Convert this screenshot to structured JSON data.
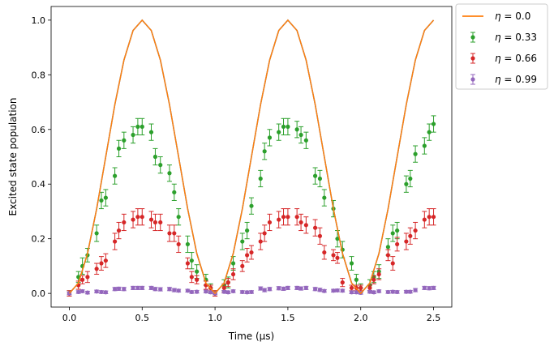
{
  "chart_data": {
    "type": "scatter",
    "xlabel": "Time (μs)",
    "ylabel": "Excited state population",
    "xlim": [
      -0.125,
      2.625
    ],
    "ylim": [
      -0.05,
      1.05
    ],
    "xticks": [
      0.0,
      0.5,
      1.0,
      1.5,
      2.0,
      2.5
    ],
    "xtick_labels": [
      "0.0",
      "0.5",
      "1.0",
      "1.5",
      "2.0",
      "2.5"
    ],
    "yticks": [
      0.0,
      0.2,
      0.4,
      0.6,
      0.8,
      1.0
    ],
    "ytick_labels": [
      "0.0",
      "0.2",
      "0.4",
      "0.6",
      "0.8",
      "1.0"
    ],
    "legend_position": "outside-top-right",
    "series": [
      {
        "name": "η = 0.0",
        "label_symbol": "η",
        "label_value": " = 0.0",
        "kind": "line",
        "color": "#ff7f0e",
        "x": [
          0.0,
          0.0625,
          0.125,
          0.1875,
          0.25,
          0.3125,
          0.375,
          0.4375,
          0.5,
          0.5625,
          0.625,
          0.6875,
          0.75,
          0.8125,
          0.875,
          0.9375,
          1.0,
          1.0625,
          1.125,
          1.1875,
          1.25,
          1.3125,
          1.375,
          1.4375,
          1.5,
          1.5625,
          1.625,
          1.6875,
          1.75,
          1.8125,
          1.875,
          1.9375,
          2.0,
          2.0625,
          2.125,
          2.1875,
          2.25,
          2.3125,
          2.375,
          2.4375,
          2.5
        ],
        "y": [
          0.0,
          0.038,
          0.146,
          0.309,
          0.5,
          0.691,
          0.854,
          0.962,
          1.0,
          0.962,
          0.854,
          0.691,
          0.5,
          0.309,
          0.146,
          0.038,
          0.0,
          0.038,
          0.146,
          0.309,
          0.5,
          0.691,
          0.854,
          0.962,
          1.0,
          0.962,
          0.854,
          0.691,
          0.5,
          0.309,
          0.146,
          0.038,
          0.0,
          0.038,
          0.146,
          0.309,
          0.5,
          0.691,
          0.854,
          0.962,
          1.0
        ]
      },
      {
        "name": "η = 0.33",
        "label_symbol": "η",
        "label_value": " = 0.33",
        "kind": "errorbar",
        "color": "#2ca02c",
        "x": [
          0.0,
          0.0625,
          0.09,
          0.125,
          0.1875,
          0.22,
          0.25,
          0.3125,
          0.34,
          0.375,
          0.4375,
          0.47,
          0.5,
          0.5625,
          0.59,
          0.625,
          0.6875,
          0.72,
          0.75,
          0.8125,
          0.84,
          0.875,
          0.9375,
          0.97,
          1.0,
          1.0625,
          1.09,
          1.125,
          1.1875,
          1.22,
          1.25,
          1.3125,
          1.34,
          1.375,
          1.4375,
          1.47,
          1.5,
          1.5625,
          1.59,
          1.625,
          1.6875,
          1.72,
          1.75,
          1.8125,
          1.84,
          1.875,
          1.9375,
          1.97,
          2.0,
          2.0625,
          2.09,
          2.125,
          2.1875,
          2.22,
          2.25,
          2.3125,
          2.34,
          2.375,
          2.4375,
          2.47,
          2.5
        ],
        "y": [
          0.0,
          0.06,
          0.1,
          0.14,
          0.22,
          0.34,
          0.35,
          0.43,
          0.53,
          0.56,
          0.58,
          0.61,
          0.61,
          0.59,
          0.5,
          0.47,
          0.44,
          0.37,
          0.28,
          0.18,
          0.12,
          0.08,
          0.05,
          0.02,
          0.0,
          0.03,
          0.04,
          0.11,
          0.19,
          0.23,
          0.32,
          0.42,
          0.52,
          0.57,
          0.59,
          0.61,
          0.61,
          0.6,
          0.58,
          0.56,
          0.43,
          0.42,
          0.35,
          0.31,
          0.2,
          0.16,
          0.11,
          0.05,
          0.02,
          0.03,
          0.06,
          0.08,
          0.17,
          0.22,
          0.23,
          0.4,
          0.42,
          0.51,
          0.54,
          0.59,
          0.62
        ],
        "err": [
          0.01,
          0.02,
          0.03,
          0.025,
          0.03,
          0.03,
          0.03,
          0.03,
          0.03,
          0.03,
          0.03,
          0.03,
          0.03,
          0.03,
          0.03,
          0.03,
          0.03,
          0.03,
          0.03,
          0.03,
          0.03,
          0.025,
          0.02,
          0.015,
          0.01,
          0.02,
          0.02,
          0.025,
          0.03,
          0.03,
          0.03,
          0.03,
          0.03,
          0.03,
          0.03,
          0.03,
          0.03,
          0.03,
          0.03,
          0.03,
          0.03,
          0.03,
          0.03,
          0.03,
          0.03,
          0.03,
          0.025,
          0.02,
          0.015,
          0.02,
          0.02,
          0.025,
          0.03,
          0.03,
          0.03,
          0.03,
          0.03,
          0.03,
          0.03,
          0.03,
          0.03
        ]
      },
      {
        "name": "η = 0.66",
        "label_symbol": "η",
        "label_value": " = 0.66",
        "kind": "errorbar",
        "color": "#d62728",
        "x": [
          0.0,
          0.0625,
          0.09,
          0.125,
          0.1875,
          0.22,
          0.25,
          0.3125,
          0.34,
          0.375,
          0.4375,
          0.47,
          0.5,
          0.5625,
          0.59,
          0.625,
          0.6875,
          0.72,
          0.75,
          0.8125,
          0.84,
          0.875,
          0.9375,
          0.97,
          1.0,
          1.0625,
          1.09,
          1.125,
          1.1875,
          1.22,
          1.25,
          1.3125,
          1.34,
          1.375,
          1.4375,
          1.47,
          1.5,
          1.5625,
          1.59,
          1.625,
          1.6875,
          1.72,
          1.75,
          1.8125,
          1.84,
          1.875,
          1.9375,
          1.97,
          2.0,
          2.0625,
          2.09,
          2.125,
          2.1875,
          2.22,
          2.25,
          2.3125,
          2.34,
          2.375,
          2.4375,
          2.47,
          2.5
        ],
        "y": [
          0.0,
          0.03,
          0.05,
          0.06,
          0.09,
          0.11,
          0.12,
          0.19,
          0.23,
          0.26,
          0.27,
          0.28,
          0.28,
          0.27,
          0.26,
          0.26,
          0.22,
          0.22,
          0.18,
          0.11,
          0.06,
          0.05,
          0.03,
          0.02,
          0.0,
          0.02,
          0.04,
          0.07,
          0.1,
          0.14,
          0.15,
          0.19,
          0.22,
          0.26,
          0.27,
          0.28,
          0.28,
          0.28,
          0.26,
          0.25,
          0.24,
          0.21,
          0.15,
          0.14,
          0.13,
          0.04,
          0.02,
          0.02,
          0.02,
          0.02,
          0.05,
          0.07,
          0.14,
          0.11,
          0.18,
          0.19,
          0.21,
          0.23,
          0.27,
          0.28,
          0.28
        ],
        "err": [
          0.01,
          0.015,
          0.015,
          0.02,
          0.02,
          0.025,
          0.025,
          0.03,
          0.03,
          0.03,
          0.03,
          0.03,
          0.03,
          0.03,
          0.03,
          0.03,
          0.03,
          0.03,
          0.03,
          0.02,
          0.02,
          0.015,
          0.015,
          0.01,
          0.01,
          0.015,
          0.015,
          0.02,
          0.02,
          0.025,
          0.025,
          0.03,
          0.03,
          0.03,
          0.03,
          0.03,
          0.03,
          0.03,
          0.03,
          0.03,
          0.03,
          0.03,
          0.025,
          0.02,
          0.02,
          0.015,
          0.01,
          0.01,
          0.01,
          0.01,
          0.015,
          0.02,
          0.02,
          0.025,
          0.025,
          0.03,
          0.03,
          0.03,
          0.03,
          0.03,
          0.03
        ]
      },
      {
        "name": "η = 0.99",
        "label_symbol": "η",
        "label_value": " = 0.99",
        "kind": "errorbar",
        "color": "#9467bd",
        "x": [
          0.0,
          0.0625,
          0.09,
          0.125,
          0.1875,
          0.22,
          0.25,
          0.3125,
          0.34,
          0.375,
          0.4375,
          0.47,
          0.5,
          0.5625,
          0.59,
          0.625,
          0.6875,
          0.72,
          0.75,
          0.8125,
          0.84,
          0.875,
          0.9375,
          0.97,
          1.0,
          1.0625,
          1.09,
          1.125,
          1.1875,
          1.22,
          1.25,
          1.3125,
          1.34,
          1.375,
          1.4375,
          1.47,
          1.5,
          1.5625,
          1.59,
          1.625,
          1.6875,
          1.72,
          1.75,
          1.8125,
          1.84,
          1.875,
          1.9375,
          1.97,
          2.0,
          2.0625,
          2.09,
          2.125,
          2.1875,
          2.22,
          2.25,
          2.3125,
          2.34,
          2.375,
          2.4375,
          2.47,
          2.5
        ],
        "y": [
          0.0,
          0.005,
          0.008,
          0.003,
          0.007,
          0.005,
          0.004,
          0.016,
          0.017,
          0.016,
          0.02,
          0.02,
          0.02,
          0.02,
          0.016,
          0.015,
          0.016,
          0.012,
          0.01,
          0.01,
          0.005,
          0.006,
          0.007,
          0.004,
          0.0,
          0.006,
          0.004,
          0.008,
          0.005,
          0.004,
          0.005,
          0.018,
          0.012,
          0.016,
          0.019,
          0.017,
          0.02,
          0.02,
          0.018,
          0.02,
          0.016,
          0.013,
          0.009,
          0.01,
          0.011,
          0.01,
          0.004,
          0.004,
          0.002,
          0.006,
          0.004,
          0.008,
          0.005,
          0.006,
          0.005,
          0.006,
          0.006,
          0.012,
          0.02,
          0.019,
          0.02
        ],
        "err": [
          0.005,
          0.005,
          0.005,
          0.005,
          0.005,
          0.005,
          0.005,
          0.006,
          0.006,
          0.006,
          0.006,
          0.006,
          0.006,
          0.006,
          0.006,
          0.006,
          0.006,
          0.006,
          0.005,
          0.005,
          0.005,
          0.005,
          0.005,
          0.005,
          0.005,
          0.005,
          0.005,
          0.005,
          0.005,
          0.005,
          0.005,
          0.006,
          0.006,
          0.006,
          0.006,
          0.006,
          0.006,
          0.006,
          0.006,
          0.006,
          0.006,
          0.006,
          0.005,
          0.005,
          0.005,
          0.005,
          0.005,
          0.005,
          0.005,
          0.005,
          0.005,
          0.005,
          0.005,
          0.005,
          0.005,
          0.005,
          0.005,
          0.006,
          0.006,
          0.006,
          0.006
        ]
      }
    ],
    "reference_line": {
      "color": "#1f77b4",
      "x": [
        0.0,
        0.0625,
        0.125,
        0.1875,
        0.25,
        0.3125,
        0.375,
        0.4375,
        0.5,
        0.5625,
        0.625,
        0.6875,
        0.75,
        0.8125,
        0.875,
        0.9375,
        1.0,
        1.0625,
        1.125,
        1.1875,
        1.25,
        1.3125,
        1.375,
        1.4375,
        1.5,
        1.5625,
        1.625,
        1.6875,
        1.75,
        1.8125,
        1.875,
        1.9375,
        2.0,
        2.0625,
        2.125,
        2.1875,
        2.25,
        2.3125,
        2.375,
        2.4375,
        2.5
      ],
      "y": [
        0.0,
        0.038,
        0.146,
        0.309,
        0.5,
        0.691,
        0.854,
        0.962,
        1.0,
        0.962,
        0.854,
        0.691,
        0.5,
        0.309,
        0.146,
        0.038,
        0.0,
        0.038,
        0.146,
        0.309,
        0.5,
        0.691,
        0.854,
        0.962,
        1.0,
        0.962,
        0.854,
        0.691,
        0.5,
        0.309,
        0.146,
        0.038,
        0.0,
        0.038,
        0.146,
        0.309,
        0.5,
        0.691,
        0.854,
        0.962,
        1.0
      ]
    }
  }
}
